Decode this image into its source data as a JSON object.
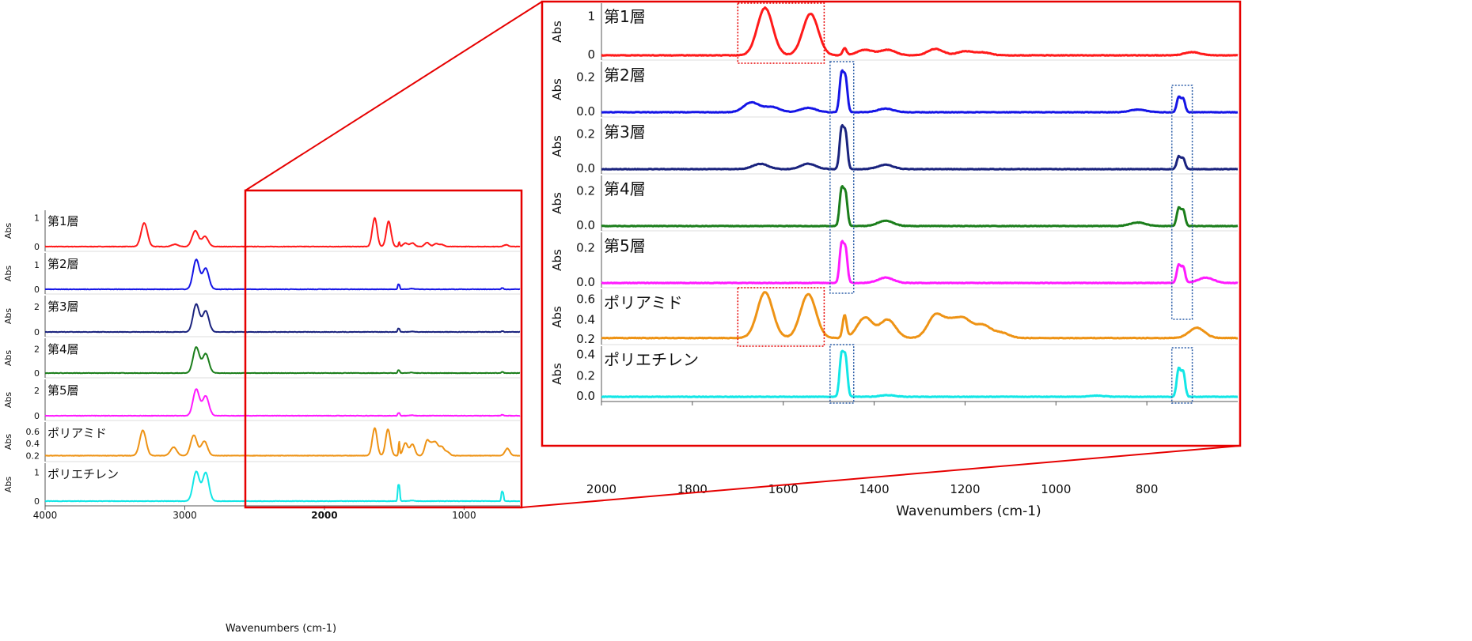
{
  "chart_data": [
    {
      "type": "line",
      "title": "",
      "xlabel": "Wavenumbers (cm-1)",
      "ylabel": "Abs",
      "xlim": [
        4000,
        600
      ],
      "x_ticks": [
        "4000",
        "3000",
        "2000",
        "1000"
      ],
      "zoom_region": [
        2000,
        600
      ],
      "grid": false,
      "panels": [
        {
          "name": "第1層",
          "color": "#ff1a1a",
          "ylim": [
            0,
            1.1
          ],
          "y_ticks": [
            "1",
            "0"
          ],
          "peaks": [
            [
              3290,
              0.82
            ],
            [
              3070,
              0.08
            ],
            [
              2925,
              0.55
            ],
            [
              2855,
              0.35
            ],
            [
              1640,
              1.0
            ],
            [
              1540,
              0.88
            ],
            [
              1465,
              0.15
            ],
            [
              1420,
              0.12
            ],
            [
              1370,
              0.12
            ],
            [
              1265,
              0.14
            ],
            [
              1200,
              0.1
            ],
            [
              1160,
              0.07
            ],
            [
              700,
              0.06
            ]
          ]
        },
        {
          "name": "第2層",
          "color": "#1515e6",
          "ylim": [
            0,
            1.3
          ],
          "y_ticks": [
            "1",
            "0"
          ],
          "peaks": [
            [
              2918,
              1.22
            ],
            [
              2850,
              0.86
            ],
            [
              1472,
              0.18
            ],
            [
              1463,
              0.16
            ],
            [
              1375,
              0.03
            ],
            [
              730,
              0.05
            ],
            [
              720,
              0.04
            ]
          ]
        },
        {
          "name": "第3層",
          "color": "#1a237e",
          "ylim": [
            0,
            2.5
          ],
          "y_ticks": [
            "2",
            "0"
          ],
          "peaks": [
            [
              2918,
              2.2
            ],
            [
              2850,
              1.65
            ],
            [
              1472,
              0.25
            ],
            [
              1463,
              0.22
            ],
            [
              1375,
              0.04
            ],
            [
              730,
              0.06
            ],
            [
              720,
              0.05
            ]
          ]
        },
        {
          "name": "第4層",
          "color": "#1b7e1b",
          "ylim": [
            0,
            2.5
          ],
          "y_ticks": [
            "2",
            "0"
          ],
          "peaks": [
            [
              2918,
              2.15
            ],
            [
              2850,
              1.6
            ],
            [
              1472,
              0.22
            ],
            [
              1463,
              0.2
            ],
            [
              1375,
              0.04
            ],
            [
              730,
              0.09
            ],
            [
              720,
              0.07
            ]
          ]
        },
        {
          "name": "第5層",
          "color": "#ff1aff",
          "ylim": [
            0,
            2.5
          ],
          "y_ticks": [
            "2",
            "0"
          ],
          "peaks": [
            [
              2918,
              2.1
            ],
            [
              2850,
              1.55
            ],
            [
              1472,
              0.2
            ],
            [
              1463,
              0.18
            ],
            [
              1375,
              0.04
            ],
            [
              730,
              0.07
            ],
            [
              720,
              0.06
            ]
          ]
        },
        {
          "name": "ポリアミド",
          "color": "#ee9315",
          "ylim": [
            0.18,
            0.68
          ],
          "y_ticks": [
            "0.6",
            "0.4",
            "0.2"
          ],
          "peaks": [
            [
              3300,
              0.42
            ],
            [
              3080,
              0.14
            ],
            [
              2935,
              0.34
            ],
            [
              2860,
              0.24
            ],
            [
              1640,
              0.46
            ],
            [
              1545,
              0.44
            ],
            [
              1465,
              0.23
            ],
            [
              1420,
              0.21
            ],
            [
              1370,
              0.19
            ],
            [
              1265,
              0.24
            ],
            [
              1230,
              0.16
            ],
            [
              1200,
              0.18
            ],
            [
              1160,
              0.14
            ],
            [
              1120,
              0.06
            ],
            [
              690,
              0.12
            ]
          ]
        },
        {
          "name": "ポリエチレン",
          "color": "#12e6e6",
          "ylim": [
            0,
            1.15
          ],
          "y_ticks": [
            "1",
            "0"
          ],
          "peaks": [
            [
              2918,
              1.02
            ],
            [
              2850,
              0.98
            ],
            [
              1472,
              0.5
            ],
            [
              1463,
              0.48
            ],
            [
              1370,
              0.02
            ],
            [
              730,
              0.32
            ],
            [
              720,
              0.28
            ]
          ]
        }
      ]
    },
    {
      "type": "line",
      "title": "",
      "xlabel": "Wavenumbers (cm-1)",
      "ylabel": "Abs",
      "xlim": [
        2000,
        600
      ],
      "x_ticks": [
        "2000",
        "1800",
        "1600",
        "1400",
        "1200",
        "1000",
        "800"
      ],
      "grid": false,
      "panels": [
        {
          "name": "第1層",
          "color": "#ff1a1a",
          "ylim": [
            0,
            1.2
          ],
          "y_ticks": [
            "1",
            "0"
          ],
          "peaks": [
            [
              1640,
              1.2
            ],
            [
              1540,
              1.05
            ],
            [
              1465,
              0.18
            ],
            [
              1420,
              0.14
            ],
            [
              1370,
              0.14
            ],
            [
              1265,
              0.16
            ],
            [
              1200,
              0.1
            ],
            [
              1160,
              0.07
            ],
            [
              700,
              0.08
            ]
          ]
        },
        {
          "name": "第2層",
          "color": "#1515e6",
          "ylim": [
            0,
            0.26
          ],
          "y_ticks": [
            "0.2",
            "0.0"
          ],
          "peaks": [
            [
              1670,
              0.055
            ],
            [
              1625,
              0.03
            ],
            [
              1545,
              0.025
            ],
            [
              1472,
              0.21
            ],
            [
              1463,
              0.19
            ],
            [
              1375,
              0.02
            ],
            [
              820,
              0.015
            ],
            [
              730,
              0.085
            ],
            [
              720,
              0.075
            ]
          ]
        },
        {
          "name": "第3層",
          "color": "#1a237e",
          "ylim": [
            0,
            0.26
          ],
          "y_ticks": [
            "0.2",
            "0.0"
          ],
          "peaks": [
            [
              1650,
              0.03
            ],
            [
              1545,
              0.03
            ],
            [
              1472,
              0.22
            ],
            [
              1463,
              0.2
            ],
            [
              1375,
              0.025
            ],
            [
              730,
              0.07
            ],
            [
              720,
              0.06
            ]
          ]
        },
        {
          "name": "第4層",
          "color": "#1b7e1b",
          "ylim": [
            0,
            0.26
          ],
          "y_ticks": [
            "0.2",
            "0.0"
          ],
          "peaks": [
            [
              1472,
              0.2
            ],
            [
              1463,
              0.18
            ],
            [
              1375,
              0.03
            ],
            [
              820,
              0.02
            ],
            [
              730,
              0.1
            ],
            [
              720,
              0.09
            ]
          ]
        },
        {
          "name": "第5層",
          "color": "#ff1aff",
          "ylim": [
            0,
            0.26
          ],
          "y_ticks": [
            "0.2",
            "0.0"
          ],
          "peaks": [
            [
              1472,
              0.21
            ],
            [
              1463,
              0.19
            ],
            [
              1375,
              0.03
            ],
            [
              730,
              0.1
            ],
            [
              720,
              0.09
            ],
            [
              670,
              0.03
            ]
          ]
        },
        {
          "name": "ポリアミド",
          "color": "#ee9315",
          "ylim": [
            0.2,
            0.65
          ],
          "y_ticks": [
            "0.6",
            "0.4",
            "0.2"
          ],
          "peaks": [
            [
              1640,
              0.45
            ],
            [
              1545,
              0.43
            ],
            [
              1465,
              0.22
            ],
            [
              1420,
              0.2
            ],
            [
              1370,
              0.18
            ],
            [
              1265,
              0.22
            ],
            [
              1230,
              0.14
            ],
            [
              1200,
              0.16
            ],
            [
              1160,
              0.12
            ],
            [
              1120,
              0.05
            ],
            [
              690,
              0.1
            ]
          ]
        },
        {
          "name": "ポリエチレン",
          "color": "#12e6e6",
          "ylim": [
            0,
            0.43
          ],
          "y_ticks": [
            "0.4",
            "0.2",
            "0.0"
          ],
          "peaks": [
            [
              1472,
              0.38
            ],
            [
              1463,
              0.36
            ],
            [
              1370,
              0.015
            ],
            [
              910,
              0.01
            ],
            [
              730,
              0.26
            ],
            [
              720,
              0.23
            ]
          ]
        }
      ]
    }
  ]
}
